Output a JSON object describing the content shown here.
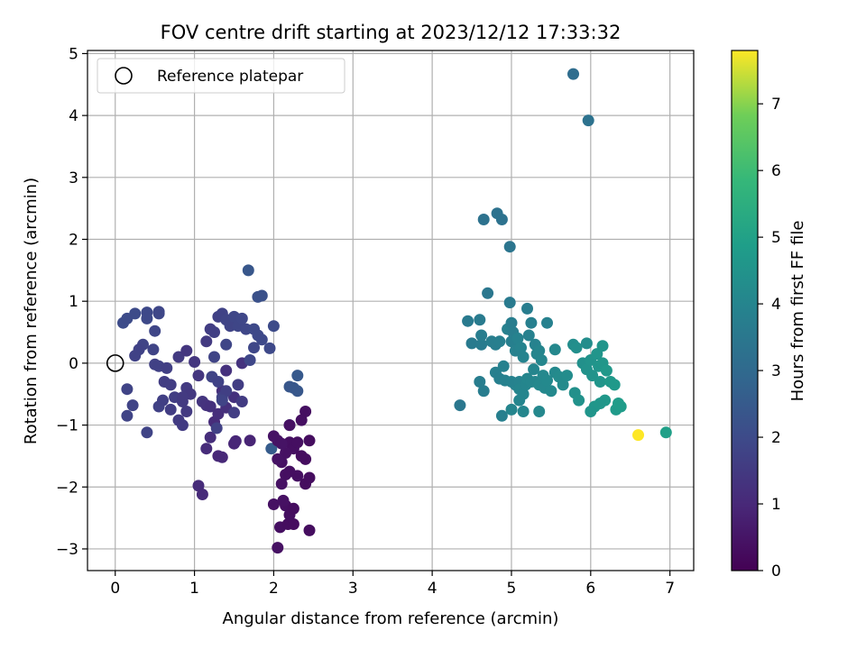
{
  "chart_data": {
    "type": "scatter",
    "title": "FOV centre drift starting at 2023/12/12 17:33:32",
    "xlabel": "Angular distance from reference (arcmin)",
    "ylabel": "Rotation from reference (arcmin)",
    "xlim": [
      -0.35,
      7.3
    ],
    "ylim": [
      -3.35,
      5.05
    ],
    "xticks": [
      0,
      1,
      2,
      3,
      4,
      5,
      6,
      7
    ],
    "yticks": [
      -3,
      -2,
      -1,
      0,
      1,
      2,
      3,
      4,
      5
    ],
    "xtick_labels": [
      "0",
      "1",
      "2",
      "3",
      "4",
      "5",
      "6",
      "7"
    ],
    "ytick_labels": [
      "−3",
      "−2",
      "−1",
      "0",
      "1",
      "2",
      "3",
      "4",
      "5"
    ],
    "grid": true,
    "legend": {
      "placement": "top-left",
      "entries": [
        "Reference platepar"
      ]
    },
    "colorbar": {
      "label": "Hours from first FF file",
      "colormap": "viridis",
      "range": [
        0,
        7.8
      ],
      "ticks": [
        0,
        1,
        2,
        3,
        4,
        5,
        6,
        7
      ],
      "tick_labels": [
        "0",
        "1",
        "2",
        "3",
        "4",
        "5",
        "6",
        "7"
      ]
    },
    "reference_point": [
      0,
      0
    ],
    "points": [
      [
        0.1,
        0.65,
        2.05
      ],
      [
        0.15,
        0.72,
        2.0
      ],
      [
        0.25,
        0.8,
        2.0
      ],
      [
        0.4,
        0.82,
        1.95
      ],
      [
        0.4,
        0.72,
        1.95
      ],
      [
        0.55,
        0.8,
        1.9
      ],
      [
        0.55,
        0.83,
        1.9
      ],
      [
        0.5,
        0.52,
        1.85
      ],
      [
        0.48,
        0.22,
        1.8
      ],
      [
        0.35,
        0.3,
        1.8
      ],
      [
        0.3,
        0.22,
        1.75
      ],
      [
        0.25,
        0.12,
        1.75
      ],
      [
        0.5,
        -0.02,
        1.7
      ],
      [
        0.55,
        -0.05,
        1.7
      ],
      [
        0.65,
        -0.08,
        1.65
      ],
      [
        0.15,
        -0.42,
        1.8
      ],
      [
        0.22,
        -0.68,
        1.8
      ],
      [
        0.15,
        -0.85,
        1.8
      ],
      [
        0.4,
        -1.12,
        1.8
      ],
      [
        0.55,
        -0.7,
        1.7
      ],
      [
        0.6,
        -0.6,
        1.65
      ],
      [
        0.7,
        -0.75,
        1.6
      ],
      [
        0.75,
        -0.55,
        1.6
      ],
      [
        0.8,
        -0.92,
        1.55
      ],
      [
        0.85,
        -1.0,
        1.55
      ],
      [
        0.85,
        -0.62,
        1.5
      ],
      [
        0.9,
        -0.4,
        1.5
      ],
      [
        0.95,
        -0.5,
        1.45
      ],
      [
        0.8,
        0.1,
        1.5
      ],
      [
        0.9,
        0.2,
        1.4
      ],
      [
        1.0,
        0.02,
        1.4
      ],
      [
        1.05,
        -0.2,
        1.4
      ],
      [
        1.1,
        -0.62,
        1.35
      ],
      [
        1.15,
        -0.68,
        1.3
      ],
      [
        1.2,
        -0.7,
        1.25
      ],
      [
        0.9,
        -0.78,
        1.5
      ],
      [
        0.85,
        -0.55,
        1.5
      ],
      [
        0.62,
        -0.3,
        1.6
      ],
      [
        0.7,
        -0.35,
        1.6
      ],
      [
        1.05,
        -1.98,
        1.1
      ],
      [
        1.1,
        -2.12,
        1.05
      ],
      [
        1.15,
        -1.38,
        1.1
      ],
      [
        1.2,
        -1.2,
        1.15
      ],
      [
        1.3,
        -1.5,
        1.0
      ],
      [
        1.35,
        -1.52,
        1.0
      ],
      [
        1.5,
        -1.3,
        0.95
      ],
      [
        1.52,
        -1.26,
        0.95
      ],
      [
        1.7,
        -1.25,
        0.9
      ],
      [
        1.25,
        -0.95,
        1.1
      ],
      [
        1.3,
        -0.82,
        1.15
      ],
      [
        1.4,
        -0.72,
        1.2
      ],
      [
        1.35,
        -0.45,
        1.2
      ],
      [
        1.4,
        -0.12,
        1.25
      ],
      [
        1.5,
        -0.55,
        1.25
      ],
      [
        1.6,
        0.0,
        1.3
      ],
      [
        1.15,
        0.35,
        1.5
      ],
      [
        1.2,
        0.55,
        1.6
      ],
      [
        1.25,
        0.5,
        1.65
      ],
      [
        1.3,
        0.75,
        1.7
      ],
      [
        1.35,
        0.8,
        1.75
      ],
      [
        1.4,
        0.7,
        1.8
      ],
      [
        1.45,
        0.6,
        1.8
      ],
      [
        1.5,
        0.75,
        1.85
      ],
      [
        1.55,
        0.6,
        1.85
      ],
      [
        1.6,
        0.72,
        1.9
      ],
      [
        1.65,
        0.55,
        1.9
      ],
      [
        1.75,
        0.55,
        1.95
      ],
      [
        1.8,
        0.45,
        1.95
      ],
      [
        1.85,
        0.38,
        1.95
      ],
      [
        1.75,
        0.25,
        1.9
      ],
      [
        1.8,
        1.07,
        2.2
      ],
      [
        1.85,
        1.09,
        2.2
      ],
      [
        1.68,
        1.5,
        2.4
      ],
      [
        2.0,
        0.6,
        2.0
      ],
      [
        1.95,
        0.24,
        1.95
      ],
      [
        1.7,
        0.05,
        1.9
      ],
      [
        1.4,
        0.3,
        1.85
      ],
      [
        1.25,
        0.1,
        1.8
      ],
      [
        1.22,
        -0.22,
        1.8
      ],
      [
        1.3,
        -0.3,
        1.75
      ],
      [
        1.35,
        -0.55,
        1.7
      ],
      [
        1.4,
        -0.45,
        1.65
      ],
      [
        1.5,
        -0.8,
        1.6
      ],
      [
        1.6,
        -0.62,
        1.55
      ],
      [
        1.55,
        -0.35,
        1.6
      ],
      [
        1.28,
        -1.05,
        1.7
      ],
      [
        1.35,
        -0.6,
        1.8
      ],
      [
        2.2,
        -0.38,
        2.4
      ],
      [
        2.25,
        -0.4,
        2.4
      ],
      [
        2.3,
        -0.2,
        2.45
      ],
      [
        2.3,
        -0.45,
        2.4
      ],
      [
        2.2,
        -1.0,
        2.5
      ],
      [
        1.97,
        -1.38,
        2.55
      ],
      [
        2.05,
        -2.98,
        0.4
      ],
      [
        2.08,
        -2.65,
        0.35
      ],
      [
        2.18,
        -2.6,
        0.3
      ],
      [
        2.25,
        -2.6,
        0.3
      ],
      [
        2.0,
        -2.28,
        0.4
      ],
      [
        2.15,
        -2.3,
        0.35
      ],
      [
        2.2,
        -2.45,
        0.35
      ],
      [
        2.25,
        -2.35,
        0.3
      ],
      [
        2.12,
        -2.22,
        0.4
      ],
      [
        2.3,
        -1.82,
        0.35
      ],
      [
        2.4,
        -1.95,
        0.3
      ],
      [
        2.45,
        -1.85,
        0.3
      ],
      [
        2.4,
        -1.55,
        0.3
      ],
      [
        2.45,
        -1.25,
        0.3
      ],
      [
        2.4,
        -0.78,
        0.35
      ],
      [
        2.35,
        -0.92,
        0.35
      ],
      [
        2.2,
        -1.0,
        0.4
      ],
      [
        2.2,
        -1.28,
        0.35
      ],
      [
        2.25,
        -1.38,
        0.35
      ],
      [
        2.15,
        -1.45,
        0.4
      ],
      [
        2.1,
        -1.6,
        0.4
      ],
      [
        2.05,
        -1.55,
        0.45
      ],
      [
        2.0,
        -1.18,
        0.45
      ],
      [
        2.05,
        -1.25,
        0.45
      ],
      [
        2.1,
        -1.3,
        0.45
      ],
      [
        2.3,
        -1.28,
        0.35
      ],
      [
        2.35,
        -1.5,
        0.3
      ],
      [
        2.15,
        -1.8,
        0.35
      ],
      [
        2.2,
        -1.75,
        0.35
      ],
      [
        2.1,
        -1.95,
        0.4
      ],
      [
        2.45,
        -2.7,
        0.3
      ],
      [
        4.35,
        -0.68,
        3.5
      ],
      [
        4.45,
        0.68,
        3.6
      ],
      [
        4.5,
        0.32,
        3.6
      ],
      [
        4.6,
        0.7,
        3.65
      ],
      [
        4.62,
        0.3,
        3.65
      ],
      [
        4.6,
        -0.3,
        3.7
      ],
      [
        4.65,
        -0.45,
        3.7
      ],
      [
        4.62,
        0.45,
        3.7
      ],
      [
        4.65,
        2.32,
        3.3
      ],
      [
        4.7,
        1.13,
        3.5
      ],
      [
        4.75,
        0.35,
        3.75
      ],
      [
        4.8,
        -0.15,
        3.8
      ],
      [
        4.8,
        0.3,
        3.75
      ],
      [
        4.82,
        2.42,
        3.3
      ],
      [
        4.85,
        0.35,
        3.8
      ],
      [
        4.88,
        2.32,
        3.3
      ],
      [
        4.85,
        -0.25,
        3.8
      ],
      [
        4.9,
        -0.05,
        3.85
      ],
      [
        4.92,
        -0.28,
        3.85
      ],
      [
        4.88,
        -0.85,
        3.8
      ],
      [
        4.95,
        0.55,
        3.85
      ],
      [
        4.98,
        1.88,
        3.4
      ],
      [
        4.98,
        0.98,
        3.6
      ],
      [
        5.0,
        0.65,
        3.7
      ],
      [
        5.02,
        0.5,
        3.75
      ],
      [
        5.0,
        0.35,
        3.8
      ],
      [
        5.05,
        0.2,
        3.85
      ],
      [
        5.0,
        -0.3,
        3.9
      ],
      [
        5.05,
        -0.35,
        3.9
      ],
      [
        5.1,
        -0.3,
        3.95
      ],
      [
        5.08,
        0.4,
        3.9
      ],
      [
        5.12,
        0.25,
        3.95
      ],
      [
        5.15,
        0.1,
        3.95
      ],
      [
        5.1,
        -0.42,
        4.0
      ],
      [
        5.15,
        -0.5,
        4.0
      ],
      [
        5.18,
        -0.35,
        4.0
      ],
      [
        5.2,
        -0.25,
        4.05
      ],
      [
        5.2,
        0.88,
        3.7
      ],
      [
        5.25,
        0.65,
        3.8
      ],
      [
        5.22,
        0.45,
        3.85
      ],
      [
        5.3,
        0.3,
        3.9
      ],
      [
        5.28,
        -0.1,
        4.0
      ],
      [
        5.3,
        -0.3,
        4.05
      ],
      [
        5.25,
        -0.3,
        4.05
      ],
      [
        5.35,
        -0.35,
        4.1
      ],
      [
        5.32,
        0.15,
        4.0
      ],
      [
        5.35,
        0.2,
        4.0
      ],
      [
        5.38,
        0.05,
        4.05
      ],
      [
        5.4,
        -0.2,
        4.1
      ],
      [
        5.42,
        -0.4,
        4.1
      ],
      [
        5.45,
        0.65,
        3.85
      ],
      [
        5.45,
        -0.28,
        4.15
      ],
      [
        5.5,
        -0.45,
        4.15
      ],
      [
        5.55,
        0.22,
        4.1
      ],
      [
        5.55,
        -0.15,
        4.15
      ],
      [
        5.6,
        -0.22,
        4.2
      ],
      [
        5.65,
        -0.35,
        4.2
      ],
      [
        5.7,
        -0.2,
        4.25
      ],
      [
        5.35,
        -0.78,
        4.1
      ],
      [
        5.15,
        -0.78,
        4.05
      ],
      [
        5.0,
        -0.75,
        4.0
      ],
      [
        5.1,
        -0.6,
        4.0
      ],
      [
        5.78,
        4.67,
        3.1
      ],
      [
        5.97,
        3.92,
        3.3
      ],
      [
        5.95,
        0.32,
        4.3
      ],
      [
        5.78,
        0.3,
        4.3
      ],
      [
        5.82,
        0.25,
        4.35
      ],
      [
        5.9,
        0.0,
        4.4
      ],
      [
        5.95,
        -0.1,
        4.45
      ],
      [
        6.0,
        0.05,
        4.5
      ],
      [
        6.02,
        -0.2,
        4.5
      ],
      [
        6.08,
        0.15,
        4.55
      ],
      [
        6.1,
        -0.05,
        4.55
      ],
      [
        6.12,
        -0.3,
        4.55
      ],
      [
        6.15,
        0.0,
        4.6
      ],
      [
        6.15,
        0.28,
        4.55
      ],
      [
        6.2,
        -0.12,
        4.65
      ],
      [
        6.25,
        -0.3,
        4.7
      ],
      [
        6.3,
        -0.35,
        4.7
      ],
      [
        6.32,
        -0.75,
        4.75
      ],
      [
        6.35,
        -0.65,
        4.8
      ],
      [
        6.38,
        -0.7,
        4.8
      ],
      [
        6.18,
        -0.6,
        4.65
      ],
      [
        6.12,
        -0.65,
        4.6
      ],
      [
        6.05,
        -0.7,
        4.6
      ],
      [
        6.0,
        -0.78,
        4.55
      ],
      [
        5.8,
        -0.48,
        4.4
      ],
      [
        5.85,
        -0.6,
        4.45
      ],
      [
        6.6,
        -1.16,
        7.8
      ],
      [
        6.95,
        -1.12,
        4.95
      ]
    ]
  }
}
